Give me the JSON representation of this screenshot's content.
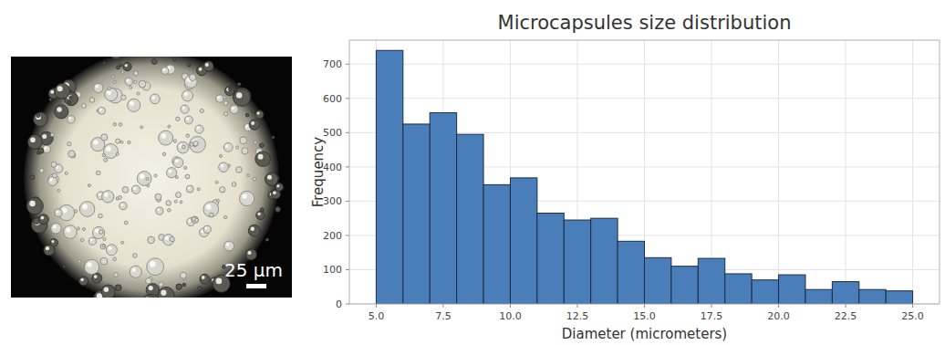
{
  "chart_data": {
    "type": "histogram",
    "title": "Microcapsules size distribution",
    "x_label": "Diameter (micrometers)",
    "y_label": "Frequency",
    "bins": [
      5,
      6,
      7,
      8,
      9,
      10,
      11,
      12,
      13,
      14,
      15,
      16,
      17,
      18,
      19,
      20,
      21,
      22,
      23,
      24,
      25
    ],
    "values": [
      740,
      525,
      558,
      495,
      348,
      368,
      265,
      245,
      250,
      183,
      135,
      110,
      133,
      88,
      70,
      85,
      42,
      65,
      42,
      38
    ],
    "color": "#4a7ebb",
    "xlim": [
      4,
      26
    ],
    "xticks": [
      {
        "value": 5,
        "label": "5.0"
      },
      7.5,
      {
        "value": 10,
        "label": "10.0"
      },
      12.5,
      {
        "value": 15,
        "label": "15.0"
      },
      17.5,
      {
        "value": 20,
        "label": "20.0"
      },
      22.5,
      {
        "value": 25,
        "label": "25.0"
      }
    ],
    "ylim": [
      0,
      770
    ],
    "yticks": [
      0,
      100,
      200,
      300,
      400,
      500,
      600,
      700
    ],
    "grid": true
  },
  "image": {
    "scale_bar_label": "25 µm"
  }
}
